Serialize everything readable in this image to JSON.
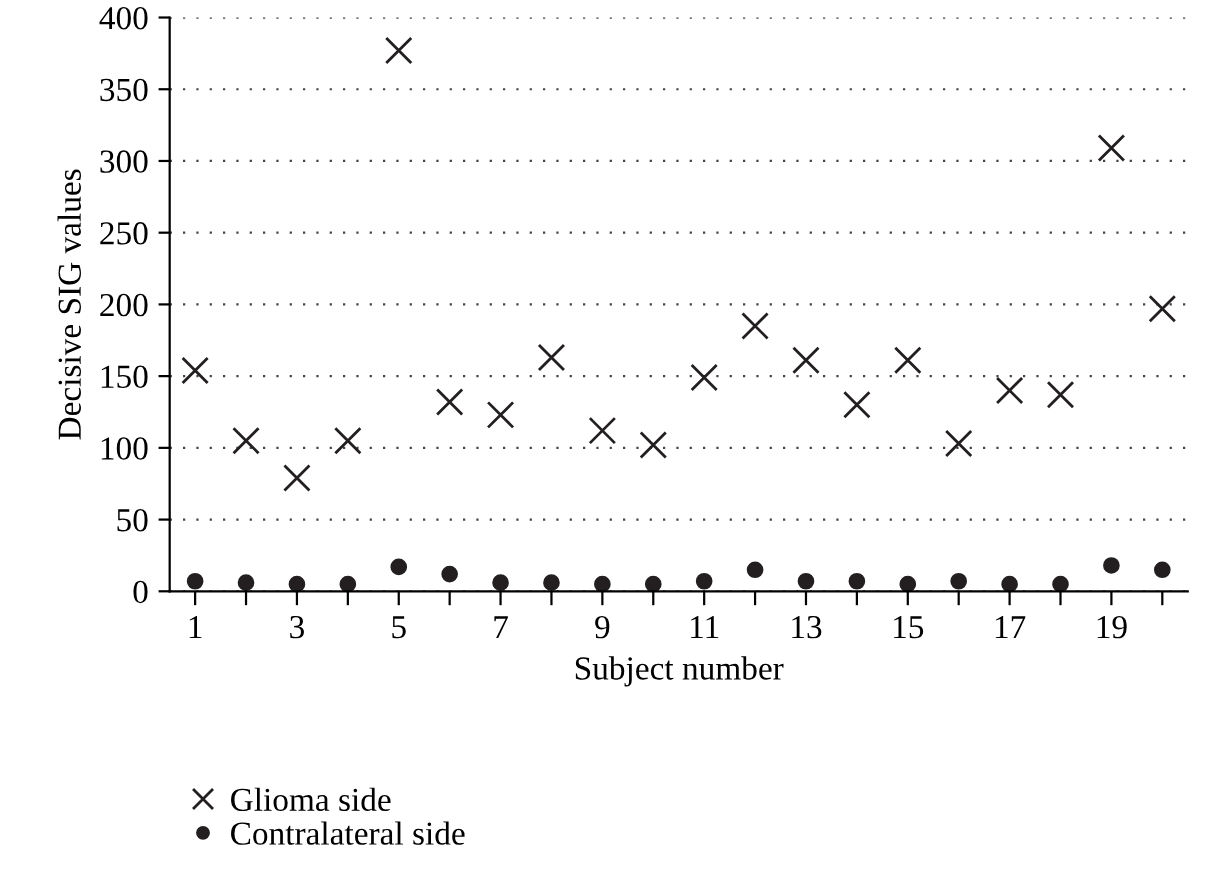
{
  "chart_data": {
    "type": "scatter",
    "xlabel": "Subject number",
    "ylabel": "Decisive SIG values",
    "x": [
      1,
      2,
      3,
      4,
      5,
      6,
      7,
      8,
      9,
      10,
      11,
      12,
      13,
      14,
      15,
      16,
      17,
      18,
      19,
      20
    ],
    "series": [
      {
        "name": "Glioma side",
        "color": "#231f20",
        "marker": "cross",
        "values": [
          154,
          105,
          79,
          105,
          377,
          132,
          123,
          163,
          112,
          102,
          149,
          185,
          161,
          130,
          161,
          103,
          140,
          137,
          309,
          197
        ]
      },
      {
        "name": "Contralateral side",
        "color": "#231f20",
        "marker": "circle",
        "values": [
          7,
          6,
          5,
          5,
          17,
          12,
          6,
          6,
          5,
          5,
          7,
          15,
          7,
          7,
          5,
          7,
          5,
          5,
          18,
          15
        ]
      }
    ],
    "xlim": [
      0.5,
      20.5
    ],
    "xticks": [
      1,
      {
        "value": 2,
        "label": null
      },
      3,
      {
        "value": 4,
        "label": null
      },
      5,
      {
        "value": 6,
        "label": null
      },
      7,
      {
        "value": 8,
        "label": null
      },
      9,
      {
        "value": 10,
        "label": null
      },
      11,
      {
        "value": 12,
        "label": null
      },
      13,
      {
        "value": 14,
        "label": null
      },
      15,
      {
        "value": 16,
        "label": null
      },
      17,
      {
        "value": 18,
        "label": null
      },
      19,
      {
        "value": 20,
        "label": null
      }
    ],
    "ylim": [
      0,
      400
    ],
    "yticks": [
      0,
      50,
      100,
      150,
      200,
      250,
      300,
      350,
      400
    ],
    "grid": "y",
    "legend": "bottom"
  }
}
